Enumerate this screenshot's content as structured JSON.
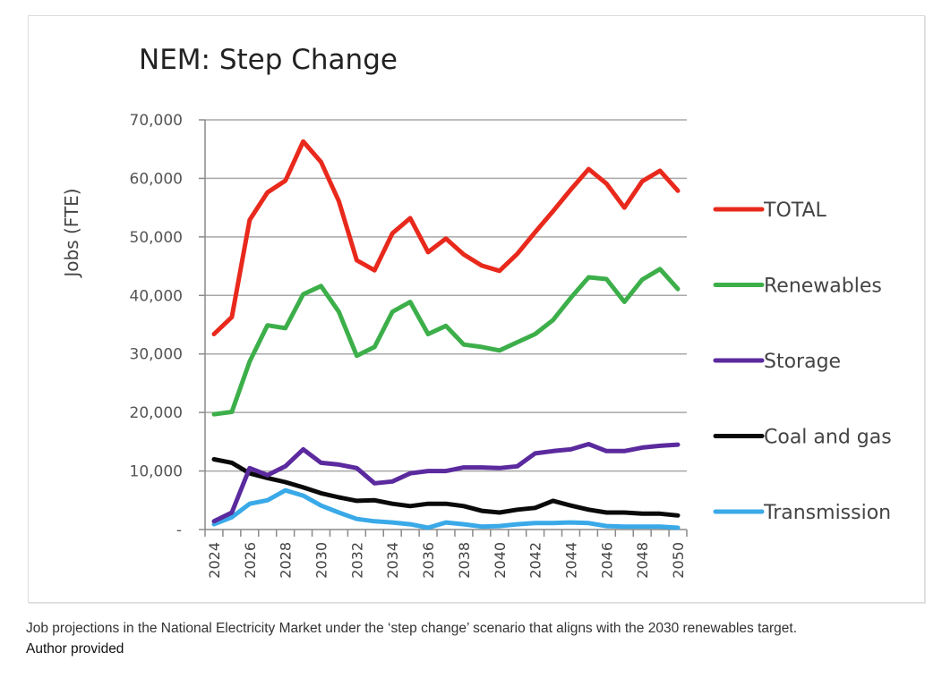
{
  "chart_data": {
    "type": "line",
    "title": "NEM: Step Change",
    "xlabel": "",
    "ylabel": "Jobs (FTE)",
    "ylim": [
      0,
      70000
    ],
    "yticks": [
      0,
      10000,
      20000,
      30000,
      40000,
      50000,
      60000,
      70000
    ],
    "ytick_labels": [
      "-",
      "10,000",
      "20,000",
      "30,000",
      "40,000",
      "50,000",
      "60,000",
      "70,000"
    ],
    "grid": "horizontal",
    "legend_position": "right",
    "x": [
      2024,
      2025,
      2026,
      2027,
      2028,
      2029,
      2030,
      2031,
      2032,
      2033,
      2034,
      2035,
      2036,
      2037,
      2038,
      2039,
      2040,
      2041,
      2042,
      2043,
      2044,
      2045,
      2046,
      2047,
      2048,
      2049,
      2050
    ],
    "xtick_labels": [
      "2024",
      "2026",
      "2028",
      "2030",
      "2032",
      "2034",
      "2036",
      "2038",
      "2040",
      "2042",
      "2044",
      "2046",
      "2048",
      "2050"
    ],
    "series": [
      {
        "name": "TOTAL",
        "color": "#e8291c",
        "values": [
          33400,
          36300,
          52900,
          57600,
          59600,
          66300,
          62800,
          56100,
          46000,
          44300,
          50600,
          53200,
          47400,
          49700,
          47000,
          45100,
          44200,
          47100,
          50800,
          54400,
          58100,
          61600,
          59100,
          55000,
          59500,
          61300,
          57900
        ]
      },
      {
        "name": "Renewables",
        "color": "#3daf4a",
        "values": [
          19700,
          20100,
          28700,
          34900,
          34400,
          40200,
          41600,
          37200,
          29700,
          31200,
          37200,
          38900,
          33400,
          34800,
          31600,
          31200,
          30600,
          32000,
          33400,
          35800,
          39600,
          43100,
          42800,
          38900,
          42700,
          44500,
          41100
        ]
      },
      {
        "name": "Storage",
        "color": "#5b2a9e",
        "values": [
          1400,
          2900,
          10500,
          9300,
          10800,
          13700,
          11400,
          11100,
          10500,
          7900,
          8200,
          9600,
          10000,
          10000,
          10600,
          10600,
          10500,
          10800,
          13000,
          13400,
          13700,
          14600,
          13400,
          13400,
          14000,
          14300,
          14500
        ]
      },
      {
        "name": "Coal and gas",
        "color": "#0a0a0a",
        "values": [
          12000,
          11400,
          9600,
          8800,
          8100,
          7200,
          6200,
          5500,
          4900,
          5000,
          4400,
          4000,
          4400,
          4400,
          4000,
          3200,
          2900,
          3400,
          3700,
          4900,
          4100,
          3400,
          2900,
          2900,
          2700,
          2700,
          2400
        ]
      },
      {
        "name": "Transmission",
        "color": "#3aa9e8",
        "values": [
          900,
          2100,
          4400,
          5000,
          6700,
          5800,
          4100,
          2900,
          1800,
          1400,
          1200,
          900,
          300,
          1200,
          900,
          500,
          600,
          900,
          1100,
          1100,
          1200,
          1100,
          600,
          500,
          500,
          500,
          300
        ]
      }
    ]
  },
  "caption": {
    "text": "Job projections in the National Electricity Market under the ‘step change’ scenario that aligns with the 2030 renewables target.",
    "credit": "Author provided"
  }
}
